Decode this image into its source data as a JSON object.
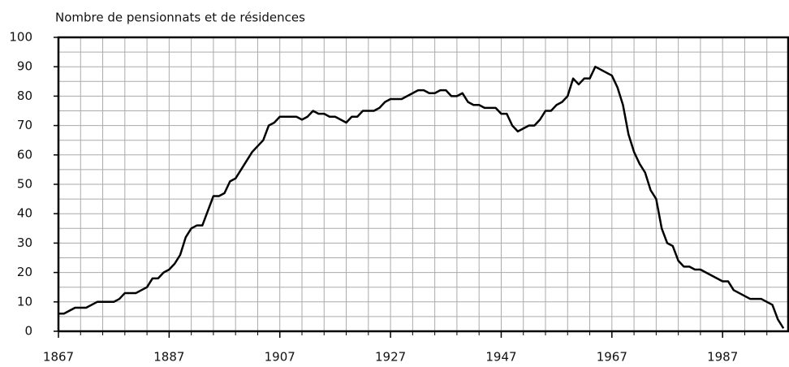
{
  "chart_data": {
    "type": "line",
    "title": "Nombre de pensionnats et de résidences",
    "x": [
      1867,
      1868,
      1869,
      1870,
      1871,
      1872,
      1873,
      1874,
      1875,
      1876,
      1877,
      1878,
      1879,
      1880,
      1881,
      1882,
      1883,
      1884,
      1885,
      1886,
      1887,
      1888,
      1889,
      1890,
      1891,
      1892,
      1893,
      1894,
      1895,
      1896,
      1897,
      1898,
      1899,
      1900,
      1901,
      1902,
      1903,
      1904,
      1905,
      1906,
      1907,
      1908,
      1909,
      1910,
      1911,
      1912,
      1913,
      1914,
      1915,
      1916,
      1917,
      1918,
      1919,
      1920,
      1921,
      1922,
      1923,
      1924,
      1925,
      1926,
      1927,
      1928,
      1929,
      1930,
      1931,
      1932,
      1933,
      1934,
      1935,
      1936,
      1937,
      1938,
      1939,
      1940,
      1941,
      1942,
      1943,
      1944,
      1945,
      1946,
      1947,
      1948,
      1949,
      1950,
      1951,
      1952,
      1953,
      1954,
      1955,
      1956,
      1957,
      1958,
      1959,
      1960,
      1961,
      1962,
      1963,
      1964,
      1965,
      1966,
      1967,
      1968,
      1969,
      1970,
      1971,
      1972,
      1973,
      1974,
      1975,
      1976,
      1977,
      1978,
      1979,
      1980,
      1981,
      1982,
      1983,
      1984,
      1985,
      1986,
      1987,
      1988,
      1989,
      1990,
      1991,
      1992,
      1993,
      1994,
      1995,
      1996,
      1997,
      1998
    ],
    "series": [
      {
        "color": "#000000",
        "values": [
          6,
          6,
          7,
          8,
          8,
          8,
          9,
          10,
          10,
          10,
          10,
          11,
          13,
          13,
          13,
          14,
          15,
          18,
          18,
          20,
          21,
          23,
          26,
          32,
          35,
          36,
          36,
          41,
          46,
          46,
          47,
          51,
          52,
          55,
          58,
          61,
          63,
          65,
          70,
          71,
          73,
          73,
          73,
          73,
          72,
          73,
          75,
          74,
          74,
          73,
          73,
          72,
          71,
          73,
          73,
          75,
          75,
          75,
          76,
          78,
          79,
          79,
          79,
          80,
          81,
          82,
          82,
          81,
          81,
          82,
          82,
          80,
          80,
          81,
          78,
          77,
          77,
          76,
          76,
          76,
          74,
          74,
          70,
          68,
          69,
          70,
          70,
          72,
          75,
          75,
          77,
          78,
          80,
          86,
          84,
          86,
          86,
          90,
          89,
          88,
          87,
          83,
          77,
          67,
          61,
          57,
          54,
          48,
          45,
          35,
          30,
          29,
          24,
          22,
          22,
          21,
          21,
          20,
          19,
          18,
          17,
          17,
          14,
          13,
          12,
          11,
          11,
          11,
          10,
          9,
          4,
          1
        ]
      }
    ],
    "xlim": [
      1867,
      1999
    ],
    "xticks": [
      1867,
      1887,
      1907,
      1927,
      1947,
      1967,
      1987
    ],
    "x_minor_ticks": [
      1871,
      1875,
      1879,
      1883,
      1891,
      1895,
      1899,
      1903,
      1911,
      1915,
      1919,
      1923,
      1931,
      1935,
      1939,
      1943,
      1951,
      1955,
      1959,
      1963,
      1971,
      1975,
      1979,
      1983,
      1991,
      1995
    ],
    "ylim": [
      0,
      100
    ],
    "yticks": [
      0,
      10,
      20,
      30,
      40,
      50,
      60,
      70,
      80,
      90,
      100
    ],
    "y_minor_ticks": [
      5,
      15,
      25,
      35,
      45,
      55,
      65,
      75,
      85,
      95
    ],
    "grid": true
  }
}
